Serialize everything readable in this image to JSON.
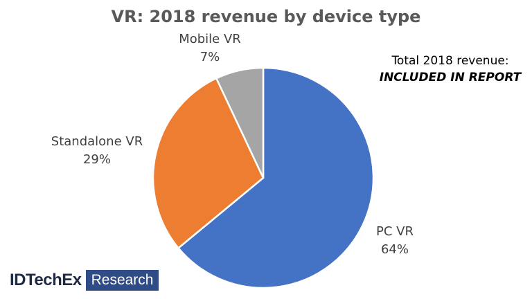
{
  "chart_data": {
    "type": "pie",
    "title": "VR: 2018 revenue by device type",
    "slices": [
      {
        "label": "PC VR",
        "value": 64,
        "value_label": "64%",
        "color": "#4472c4"
      },
      {
        "label": "Standalone VR",
        "value": 29,
        "value_label": "29%",
        "color": "#ed7d31"
      },
      {
        "label": "Mobile VR",
        "value": 7,
        "value_label": "7%",
        "color": "#a5a5a5"
      }
    ]
  },
  "callout": {
    "line1": "Total 2018 revenue:",
    "line2": "INCLUDED IN REPORT"
  },
  "logo": {
    "brand": "IDTechEx",
    "tag": "Research",
    "tag_color": "#2f4c86"
  }
}
